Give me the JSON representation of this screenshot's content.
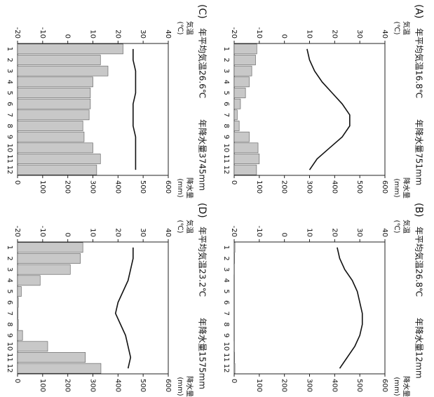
{
  "chart_data": [
    {
      "type": "bar",
      "label": "(A)",
      "title": "年平均気温16.8℃",
      "subtitle": "年降水量751mm",
      "y_label": "気温",
      "y_unit": "(℃)",
      "y2_label": "降水量",
      "y2_unit": "(mm)",
      "categories": [
        "1",
        "2",
        "3",
        "4",
        "5",
        "6",
        "7",
        "8",
        "9",
        "10",
        "11",
        "12"
      ],
      "series": [
        {
          "type": "bar",
          "axis": "y2",
          "color": "#c8c8c8",
          "values": [
            90,
            85,
            70,
            60,
            45,
            25,
            12,
            20,
            60,
            95,
            100,
            89
          ]
        },
        {
          "type": "line",
          "axis": "y",
          "color": "#111111",
          "values": [
            9,
            10,
            12,
            15,
            19,
            23,
            26,
            26,
            23,
            18,
            13,
            10
          ]
        }
      ],
      "ylim": [
        -20,
        40
      ],
      "yticks": [
        -20,
        -10,
        0,
        10,
        20,
        30,
        40
      ],
      "y2lim": [
        0,
        600
      ],
      "y2ticks": [
        0,
        100,
        200,
        300,
        400,
        500,
        600
      ]
    },
    {
      "type": "bar",
      "label": "(B)",
      "title": "年平均気温26.8℃",
      "subtitle": "年降水量12mm",
      "y_label": "気温",
      "y_unit": "(℃)",
      "y2_label": "降水量",
      "y2_unit": "(mm)",
      "categories": [
        "1",
        "2",
        "3",
        "4",
        "5",
        "6",
        "7",
        "8",
        "9",
        "10",
        "11",
        "12"
      ],
      "series": [
        {
          "type": "bar",
          "axis": "y2",
          "color": "#c8c8c8",
          "values": [
            3,
            2,
            1,
            0,
            0,
            0,
            0,
            0,
            0,
            1,
            2,
            3
          ]
        },
        {
          "type": "line",
          "axis": "y",
          "color": "#111111",
          "values": [
            21,
            22,
            24,
            27,
            29,
            30,
            31,
            31,
            30,
            28,
            25,
            22
          ]
        }
      ],
      "ylim": [
        -20,
        40
      ],
      "yticks": [
        -20,
        -10,
        0,
        10,
        20,
        30,
        40
      ],
      "y2lim": [
        0,
        600
      ],
      "y2ticks": [
        0,
        100,
        200,
        300,
        400,
        500,
        600
      ]
    },
    {
      "type": "bar",
      "label": "(C)",
      "title": "年平均気温26.6℃",
      "subtitle": "年降水量3745mm",
      "y_label": "気温",
      "y_unit": "(℃)",
      "y2_label": "降水量",
      "y2_unit": "(mm)",
      "categories": [
        "1",
        "2",
        "3",
        "4",
        "5",
        "6",
        "7",
        "8",
        "9",
        "10",
        "11",
        "12"
      ],
      "series": [
        {
          "type": "bar",
          "axis": "y2",
          "color": "#c8c8c8",
          "values": [
            420,
            330,
            360,
            300,
            290,
            290,
            285,
            260,
            265,
            300,
            330,
            315
          ]
        },
        {
          "type": "line",
          "axis": "y",
          "color": "#111111",
          "values": [
            26,
            26,
            27,
            27,
            27,
            26,
            26,
            26,
            27,
            27,
            27,
            27
          ]
        }
      ],
      "ylim": [
        -20,
        40
      ],
      "yticks": [
        -20,
        -10,
        0,
        10,
        20,
        30,
        40
      ],
      "y2lim": [
        0,
        600
      ],
      "y2ticks": [
        0,
        100,
        200,
        300,
        400,
        500,
        600
      ]
    },
    {
      "type": "bar",
      "label": "(D)",
      "title": "年平均気温23.2℃",
      "subtitle": "年降水量1575mm",
      "y_label": "気温",
      "y_unit": "(℃)",
      "y2_label": "降水量",
      "y2_unit": "(mm)",
      "categories": [
        "1",
        "2",
        "3",
        "4",
        "5",
        "6",
        "7",
        "8",
        "9",
        "10",
        "11",
        "12"
      ],
      "series": [
        {
          "type": "bar",
          "axis": "y2",
          "color": "#c8c8c8",
          "values": [
            260,
            250,
            210,
            90,
            15,
            3,
            2,
            3,
            20,
            120,
            270,
            332
          ]
        },
        {
          "type": "line",
          "axis": "y",
          "color": "#111111",
          "values": [
            26,
            26,
            25,
            24,
            22,
            20,
            19,
            21,
            23,
            24,
            25,
            24
          ]
        }
      ],
      "ylim": [
        -20,
        40
      ],
      "yticks": [
        -20,
        -10,
        0,
        10,
        20,
        30,
        40
      ],
      "y2lim": [
        0,
        600
      ],
      "y2ticks": [
        0,
        100,
        200,
        300,
        400,
        500,
        600
      ]
    }
  ]
}
